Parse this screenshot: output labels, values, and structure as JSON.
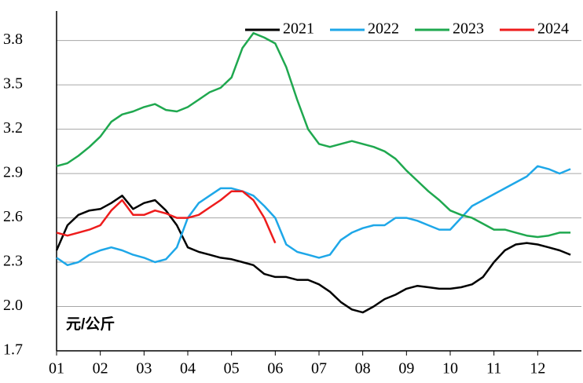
{
  "chart_data": {
    "type": "line",
    "annotation": "元/公斤",
    "categories": [
      "01",
      null,
      null,
      null,
      "02",
      null,
      null,
      null,
      "03",
      null,
      null,
      null,
      "04",
      null,
      null,
      null,
      "05",
      null,
      null,
      null,
      "06",
      null,
      null,
      null,
      "07",
      null,
      null,
      null,
      "08",
      null,
      null,
      null,
      "09",
      null,
      null,
      null,
      "10",
      null,
      null,
      null,
      "11",
      null,
      null,
      null,
      "12",
      null,
      null,
      null
    ],
    "series": [
      {
        "name": "2021",
        "color": "#000000",
        "values": [
          2.38,
          2.55,
          2.62,
          2.65,
          2.66,
          2.7,
          2.75,
          2.66,
          2.7,
          2.72,
          2.65,
          2.55,
          2.4,
          2.37,
          2.35,
          2.33,
          2.32,
          2.3,
          2.28,
          2.22,
          2.2,
          2.2,
          2.18,
          2.18,
          2.15,
          2.1,
          2.03,
          1.98,
          1.96,
          2.0,
          2.05,
          2.08,
          2.12,
          2.14,
          2.13,
          2.12,
          2.12,
          2.13,
          2.15,
          2.2,
          2.3,
          2.38,
          2.42,
          2.43,
          2.42,
          2.4,
          2.38,
          2.35
        ]
      },
      {
        "name": "2022",
        "color": "#1ea7e8",
        "values": [
          2.33,
          2.28,
          2.3,
          2.35,
          2.38,
          2.4,
          2.38,
          2.35,
          2.33,
          2.3,
          2.32,
          2.4,
          2.6,
          2.7,
          2.75,
          2.8,
          2.8,
          2.78,
          2.75,
          2.68,
          2.6,
          2.42,
          2.37,
          2.35,
          2.33,
          2.35,
          2.45,
          2.5,
          2.53,
          2.55,
          2.55,
          2.6,
          2.6,
          2.58,
          2.55,
          2.52,
          2.52,
          2.6,
          2.68,
          2.72,
          2.76,
          2.8,
          2.84,
          2.88,
          2.95,
          2.93,
          2.9,
          2.93
        ]
      },
      {
        "name": "2023",
        "color": "#1fa84f",
        "values": [
          2.95,
          2.97,
          3.02,
          3.08,
          3.15,
          3.25,
          3.3,
          3.32,
          3.35,
          3.37,
          3.33,
          3.32,
          3.35,
          3.4,
          3.45,
          3.48,
          3.55,
          3.75,
          3.85,
          3.82,
          3.78,
          3.62,
          3.4,
          3.2,
          3.1,
          3.08,
          3.1,
          3.12,
          3.1,
          3.08,
          3.05,
          3.0,
          2.92,
          2.85,
          2.78,
          2.72,
          2.65,
          2.62,
          2.6,
          2.56,
          2.52,
          2.52,
          2.5,
          2.48,
          2.47,
          2.48,
          2.5,
          2.5
        ]
      },
      {
        "name": "2024",
        "color": "#ee1c1c",
        "values": [
          2.5,
          2.48,
          2.5,
          2.52,
          2.55,
          2.65,
          2.72,
          2.62,
          2.62,
          2.65,
          2.63,
          2.6,
          2.6,
          2.62,
          2.67,
          2.72,
          2.78,
          2.78,
          2.72,
          2.6,
          2.43,
          null,
          null,
          null,
          null,
          null,
          null,
          null,
          null,
          null,
          null,
          null,
          null,
          null,
          null,
          null,
          null,
          null,
          null,
          null,
          null,
          null,
          null,
          null,
          null,
          null,
          null,
          null
        ]
      }
    ],
    "ylim": [
      1.7,
      4.0
    ],
    "yticks": [
      1.7,
      {
        "value": 2,
        "label": "2.0"
      },
      2.3,
      2.6,
      2.9,
      3.2,
      3.5,
      3.8
    ],
    "grid": true
  }
}
